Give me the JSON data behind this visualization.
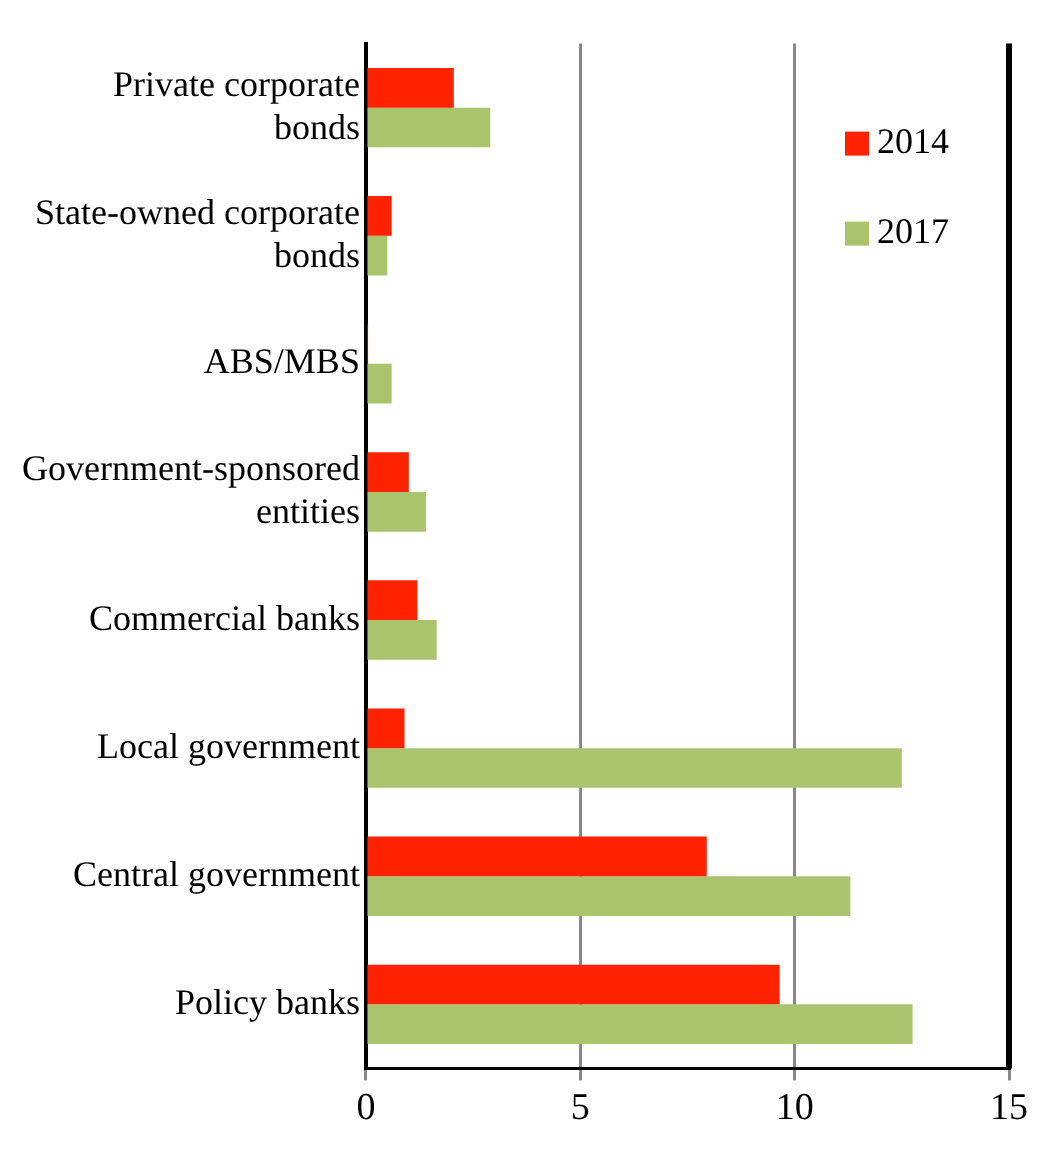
{
  "chart_data": {
    "type": "bar",
    "orientation": "horizontal",
    "categories": [
      "Private corporate bonds",
      "State-owned corporate bonds",
      "ABS/MBS",
      "Government-sponsored entities",
      "Commercial banks",
      "Local government",
      "Central government",
      "Policy banks"
    ],
    "series": [
      {
        "name": "2014",
        "color": "#ff2200",
        "values": [
          2.05,
          0.6,
          0.05,
          1.0,
          1.2,
          0.9,
          7.95,
          9.65
        ]
      },
      {
        "name": "2017",
        "color": "#a9c46c",
        "values": [
          2.9,
          0.5,
          0.6,
          1.4,
          1.65,
          12.5,
          11.3,
          12.75
        ]
      }
    ],
    "xlim": [
      0,
      15
    ],
    "xticks": [
      0,
      5,
      10,
      15
    ],
    "grid": "x",
    "legend": "top right"
  }
}
